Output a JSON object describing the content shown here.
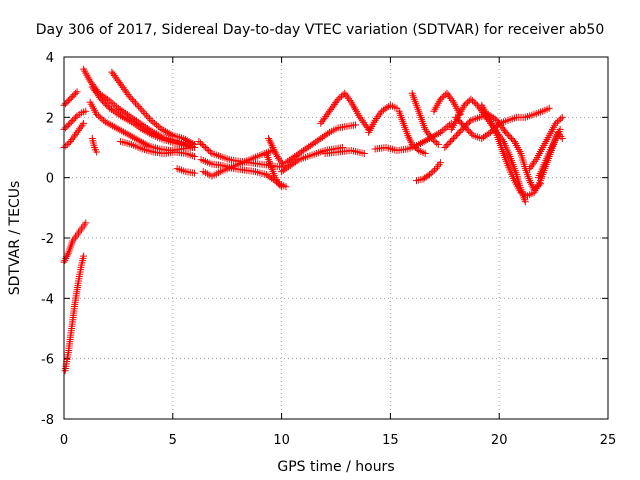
{
  "chart_data": {
    "type": "scatter",
    "title": "Day 306 of 2017, Sidereal Day-to-day VTEC variation (SDTVAR) for receiver ab50",
    "xlabel": "GPS time / hours",
    "ylabel": "SDTVAR / TECUs",
    "xlim": [
      0,
      25
    ],
    "ylim": [
      -8,
      4
    ],
    "xticks": [
      0,
      5,
      10,
      15,
      20,
      25
    ],
    "xtick_labels": [
      "0",
      "5",
      "10",
      "15",
      "20",
      "25"
    ],
    "yticks": [
      -8,
      -6,
      -4,
      -2,
      0,
      2,
      4
    ],
    "ytick_labels": [
      "-8",
      "-6",
      "-4",
      "-2",
      "0",
      "2",
      "4"
    ],
    "grid": true,
    "marker": "+",
    "color": "#ff0000",
    "series": [
      {
        "name": "s1",
        "points": [
          [
            0.05,
            -6.4
          ],
          [
            0.2,
            -5.8
          ],
          [
            0.35,
            -5.0
          ],
          [
            0.5,
            -4.2
          ],
          [
            0.65,
            -3.5
          ],
          [
            0.8,
            -2.9
          ],
          [
            0.9,
            -2.6
          ]
        ]
      },
      {
        "name": "s2",
        "points": [
          [
            0.0,
            -2.8
          ],
          [
            0.2,
            -2.5
          ],
          [
            0.4,
            -2.1
          ],
          [
            0.6,
            -1.9
          ],
          [
            0.8,
            -1.7
          ],
          [
            1.0,
            -1.5
          ]
        ]
      },
      {
        "name": "s3",
        "points": [
          [
            0.0,
            1.6
          ],
          [
            0.2,
            1.75
          ],
          [
            0.4,
            1.9
          ],
          [
            0.6,
            2.05
          ],
          [
            0.8,
            2.15
          ],
          [
            1.0,
            2.2
          ]
        ]
      },
      {
        "name": "s4",
        "points": [
          [
            0.0,
            1.0
          ],
          [
            0.3,
            1.2
          ],
          [
            0.6,
            1.5
          ],
          [
            0.9,
            1.8
          ]
        ]
      },
      {
        "name": "s5",
        "points": [
          [
            0.0,
            2.4
          ],
          [
            0.2,
            2.55
          ],
          [
            0.4,
            2.7
          ],
          [
            0.6,
            2.85
          ]
        ]
      },
      {
        "name": "s6",
        "points": [
          [
            0.9,
            3.6
          ],
          [
            1.2,
            3.2
          ],
          [
            1.6,
            2.8
          ],
          [
            2.0,
            2.6
          ],
          [
            2.5,
            2.3
          ],
          [
            3.0,
            2.05
          ],
          [
            3.5,
            1.8
          ],
          [
            4.0,
            1.55
          ],
          [
            4.5,
            1.35
          ],
          [
            5.0,
            1.25
          ],
          [
            5.5,
            1.15
          ],
          [
            6.0,
            1.0
          ]
        ]
      },
      {
        "name": "s7",
        "points": [
          [
            1.3,
            3.0
          ],
          [
            1.7,
            2.6
          ],
          [
            2.1,
            2.3
          ],
          [
            2.6,
            2.05
          ],
          [
            3.1,
            1.85
          ],
          [
            3.6,
            1.6
          ],
          [
            4.1,
            1.4
          ],
          [
            4.6,
            1.25
          ],
          [
            5.1,
            1.15
          ],
          [
            5.6,
            1.05
          ],
          [
            6.0,
            1.0
          ]
        ]
      },
      {
        "name": "s8",
        "points": [
          [
            1.2,
            2.5
          ],
          [
            1.5,
            2.1
          ],
          [
            1.9,
            1.85
          ],
          [
            2.4,
            1.65
          ],
          [
            2.9,
            1.45
          ],
          [
            3.4,
            1.25
          ],
          [
            3.9,
            1.05
          ],
          [
            4.4,
            0.95
          ],
          [
            4.9,
            0.9
          ],
          [
            5.4,
            0.95
          ],
          [
            5.9,
            1.0
          ]
        ]
      },
      {
        "name": "s9",
        "points": [
          [
            2.2,
            3.5
          ],
          [
            2.6,
            3.1
          ],
          [
            3.0,
            2.7
          ],
          [
            3.5,
            2.3
          ],
          [
            4.0,
            1.9
          ],
          [
            4.5,
            1.6
          ],
          [
            5.0,
            1.4
          ],
          [
            5.5,
            1.3
          ],
          [
            6.0,
            1.1
          ]
        ]
      },
      {
        "name": "s10",
        "points": [
          [
            2.6,
            1.2
          ],
          [
            3.1,
            1.1
          ],
          [
            3.6,
            0.95
          ],
          [
            4.1,
            0.85
          ],
          [
            4.6,
            0.8
          ],
          [
            5.1,
            0.85
          ],
          [
            5.6,
            0.8
          ],
          [
            6.0,
            0.7
          ]
        ]
      },
      {
        "name": "s11",
        "points": [
          [
            1.3,
            1.3
          ],
          [
            1.4,
            1.0
          ],
          [
            1.5,
            0.85
          ]
        ]
      },
      {
        "name": "s12",
        "points": [
          [
            5.2,
            0.3
          ],
          [
            5.6,
            0.2
          ],
          [
            6.0,
            0.15
          ]
        ]
      },
      {
        "name": "s13",
        "points": [
          [
            6.2,
            1.2
          ],
          [
            6.5,
            1.0
          ],
          [
            6.8,
            0.8
          ],
          [
            7.2,
            0.7
          ],
          [
            7.6,
            0.6
          ],
          [
            8.0,
            0.55
          ],
          [
            8.5,
            0.5
          ],
          [
            9.0,
            0.45
          ],
          [
            9.5,
            0.4
          ],
          [
            10.0,
            0.35
          ]
        ]
      },
      {
        "name": "s14",
        "points": [
          [
            6.3,
            0.6
          ],
          [
            6.8,
            0.45
          ],
          [
            7.3,
            0.4
          ],
          [
            7.8,
            0.3
          ],
          [
            8.3,
            0.25
          ],
          [
            8.8,
            0.2
          ],
          [
            9.3,
            0.1
          ],
          [
            9.7,
            -0.1
          ],
          [
            10.0,
            -0.3
          ]
        ]
      },
      {
        "name": "s15",
        "points": [
          [
            6.4,
            0.2
          ],
          [
            6.8,
            0.05
          ],
          [
            7.2,
            0.2
          ],
          [
            7.7,
            0.35
          ],
          [
            8.2,
            0.5
          ],
          [
            8.7,
            0.65
          ],
          [
            9.2,
            0.8
          ],
          [
            9.6,
            0.9
          ]
        ]
      },
      {
        "name": "s16",
        "points": [
          [
            9.3,
            0.8
          ],
          [
            9.5,
            0.4
          ],
          [
            9.7,
            0.0
          ],
          [
            9.9,
            -0.2
          ],
          [
            10.2,
            -0.3
          ]
        ]
      },
      {
        "name": "s17",
        "points": [
          [
            9.4,
            1.3
          ],
          [
            9.6,
            1.0
          ],
          [
            9.8,
            0.7
          ],
          [
            10.1,
            0.4
          ]
        ]
      },
      {
        "name": "s18",
        "points": [
          [
            10.2,
            0.5
          ],
          [
            10.6,
            0.7
          ],
          [
            11.0,
            0.9
          ],
          [
            11.4,
            1.1
          ],
          [
            11.8,
            1.3
          ],
          [
            12.2,
            1.5
          ],
          [
            12.6,
            1.65
          ],
          [
            13.0,
            1.7
          ],
          [
            13.4,
            1.75
          ]
        ]
      },
      {
        "name": "s19",
        "points": [
          [
            10.0,
            0.2
          ],
          [
            10.4,
            0.4
          ],
          [
            10.8,
            0.6
          ],
          [
            11.2,
            0.7
          ],
          [
            11.6,
            0.8
          ],
          [
            12.0,
            0.9
          ],
          [
            12.4,
            0.95
          ],
          [
            12.8,
            1.0
          ]
        ]
      },
      {
        "name": "s20",
        "points": [
          [
            11.8,
            1.8
          ],
          [
            12.2,
            2.2
          ],
          [
            12.6,
            2.6
          ],
          [
            12.9,
            2.8
          ],
          [
            13.2,
            2.5
          ],
          [
            13.6,
            2.0
          ],
          [
            14.0,
            1.6
          ]
        ]
      },
      {
        "name": "s21",
        "points": [
          [
            12.0,
            0.8
          ],
          [
            12.6,
            0.85
          ],
          [
            13.2,
            0.9
          ],
          [
            13.8,
            0.8
          ]
        ]
      },
      {
        "name": "s22",
        "points": [
          [
            14.0,
            1.5
          ],
          [
            14.3,
            1.9
          ],
          [
            14.6,
            2.2
          ],
          [
            15.0,
            2.4
          ],
          [
            15.3,
            2.3
          ]
        ]
      },
      {
        "name": "s23",
        "points": [
          [
            14.3,
            0.95
          ],
          [
            14.8,
            1.0
          ],
          [
            15.3,
            0.9
          ],
          [
            15.8,
            0.95
          ],
          [
            16.3,
            1.1
          ],
          [
            16.8,
            1.3
          ],
          [
            17.3,
            1.5
          ],
          [
            17.8,
            1.8
          ]
        ]
      },
      {
        "name": "s24",
        "points": [
          [
            15.4,
            2.2
          ],
          [
            15.6,
            1.8
          ],
          [
            15.8,
            1.4
          ],
          [
            16.0,
            1.1
          ],
          [
            16.3,
            0.9
          ],
          [
            16.6,
            0.8
          ]
        ]
      },
      {
        "name": "s25",
        "points": [
          [
            16.0,
            2.8
          ],
          [
            16.2,
            2.4
          ],
          [
            16.4,
            2.0
          ],
          [
            16.6,
            1.6
          ],
          [
            16.9,
            1.3
          ],
          [
            17.2,
            1.1
          ]
        ]
      },
      {
        "name": "s26",
        "points": [
          [
            16.2,
            -0.1
          ],
          [
            16.5,
            -0.05
          ],
          [
            16.8,
            0.1
          ],
          [
            17.1,
            0.3
          ],
          [
            17.3,
            0.5
          ]
        ]
      },
      {
        "name": "s27",
        "points": [
          [
            17.0,
            2.2
          ],
          [
            17.3,
            2.6
          ],
          [
            17.6,
            2.8
          ],
          [
            17.9,
            2.5
          ],
          [
            18.2,
            2.1
          ]
        ]
      },
      {
        "name": "s28",
        "points": [
          [
            17.5,
            1.0
          ],
          [
            17.9,
            1.3
          ],
          [
            18.3,
            1.6
          ],
          [
            18.7,
            1.9
          ],
          [
            19.1,
            2.0
          ],
          [
            19.5,
            2.1
          ],
          [
            19.9,
            1.9
          ],
          [
            20.3,
            1.5
          ],
          [
            20.7,
            1.2
          ],
          [
            21.0,
            0.8
          ],
          [
            21.2,
            0.3
          ],
          [
            21.4,
            -0.1
          ],
          [
            21.6,
            -0.4
          ],
          [
            21.9,
            -0.2
          ]
        ]
      },
      {
        "name": "s29",
        "points": [
          [
            17.8,
            1.6
          ],
          [
            18.1,
            2.0
          ],
          [
            18.4,
            2.4
          ],
          [
            18.7,
            2.6
          ],
          [
            19.0,
            2.4
          ],
          [
            19.3,
            2.1
          ],
          [
            19.6,
            1.8
          ],
          [
            19.9,
            1.5
          ],
          [
            20.2,
            1.2
          ],
          [
            20.5,
            0.7
          ],
          [
            20.8,
            0.1
          ],
          [
            21.0,
            -0.4
          ],
          [
            21.2,
            -0.8
          ]
        ]
      },
      {
        "name": "s30",
        "points": [
          [
            18.0,
            2.0
          ],
          [
            18.4,
            1.7
          ],
          [
            18.8,
            1.4
          ],
          [
            19.2,
            1.3
          ],
          [
            19.6,
            1.5
          ],
          [
            20.0,
            1.8
          ],
          [
            20.4,
            1.9
          ],
          [
            20.8,
            2.0
          ],
          [
            21.2,
            2.0
          ],
          [
            21.6,
            2.1
          ],
          [
            22.0,
            2.2
          ],
          [
            22.3,
            2.3
          ]
        ]
      },
      {
        "name": "s31",
        "points": [
          [
            19.2,
            2.4
          ],
          [
            19.5,
            2.0
          ],
          [
            19.8,
            1.6
          ],
          [
            20.1,
            1.0
          ],
          [
            20.4,
            0.4
          ],
          [
            20.7,
            -0.1
          ],
          [
            21.0,
            -0.5
          ],
          [
            21.3,
            -0.6
          ],
          [
            21.6,
            -0.5
          ],
          [
            21.9,
            -0.1
          ],
          [
            22.2,
            0.5
          ],
          [
            22.5,
            1.1
          ],
          [
            22.8,
            1.6
          ]
        ]
      },
      {
        "name": "s32",
        "points": [
          [
            21.4,
            0.3
          ],
          [
            21.7,
            0.6
          ],
          [
            22.0,
            1.0
          ],
          [
            22.3,
            1.4
          ],
          [
            22.6,
            1.8
          ],
          [
            22.9,
            2.0
          ]
        ]
      },
      {
        "name": "s33",
        "points": [
          [
            21.8,
            0.0
          ],
          [
            22.1,
            0.5
          ],
          [
            22.4,
            1.0
          ],
          [
            22.7,
            1.5
          ],
          [
            22.9,
            1.3
          ]
        ]
      }
    ]
  }
}
